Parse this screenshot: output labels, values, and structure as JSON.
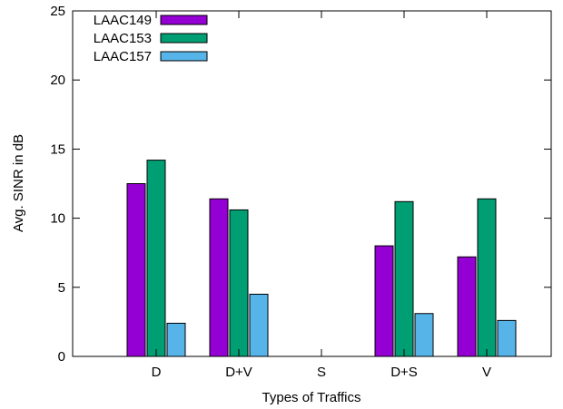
{
  "chart_data": {
    "type": "bar",
    "title": "",
    "xlabel": "Types of Traffics",
    "ylabel": "Avg. SINR in dB",
    "categories": [
      "D",
      "D+V",
      "S",
      "D+S",
      "V"
    ],
    "ylim": [
      0,
      25
    ],
    "yticks": [
      0,
      5,
      10,
      15,
      20,
      25
    ],
    "grid": false,
    "legend_position": "top-left",
    "series": [
      {
        "name": "LAAC149",
        "color": "#9400d3",
        "values": [
          12.5,
          11.4,
          0,
          8.0,
          7.2
        ]
      },
      {
        "name": "LAAC153",
        "color": "#009e73",
        "values": [
          14.2,
          10.6,
          0,
          11.2,
          11.4
        ]
      },
      {
        "name": "LAAC157",
        "color": "#56b4e9",
        "values": [
          2.4,
          4.5,
          0,
          3.1,
          2.6
        ]
      }
    ]
  }
}
